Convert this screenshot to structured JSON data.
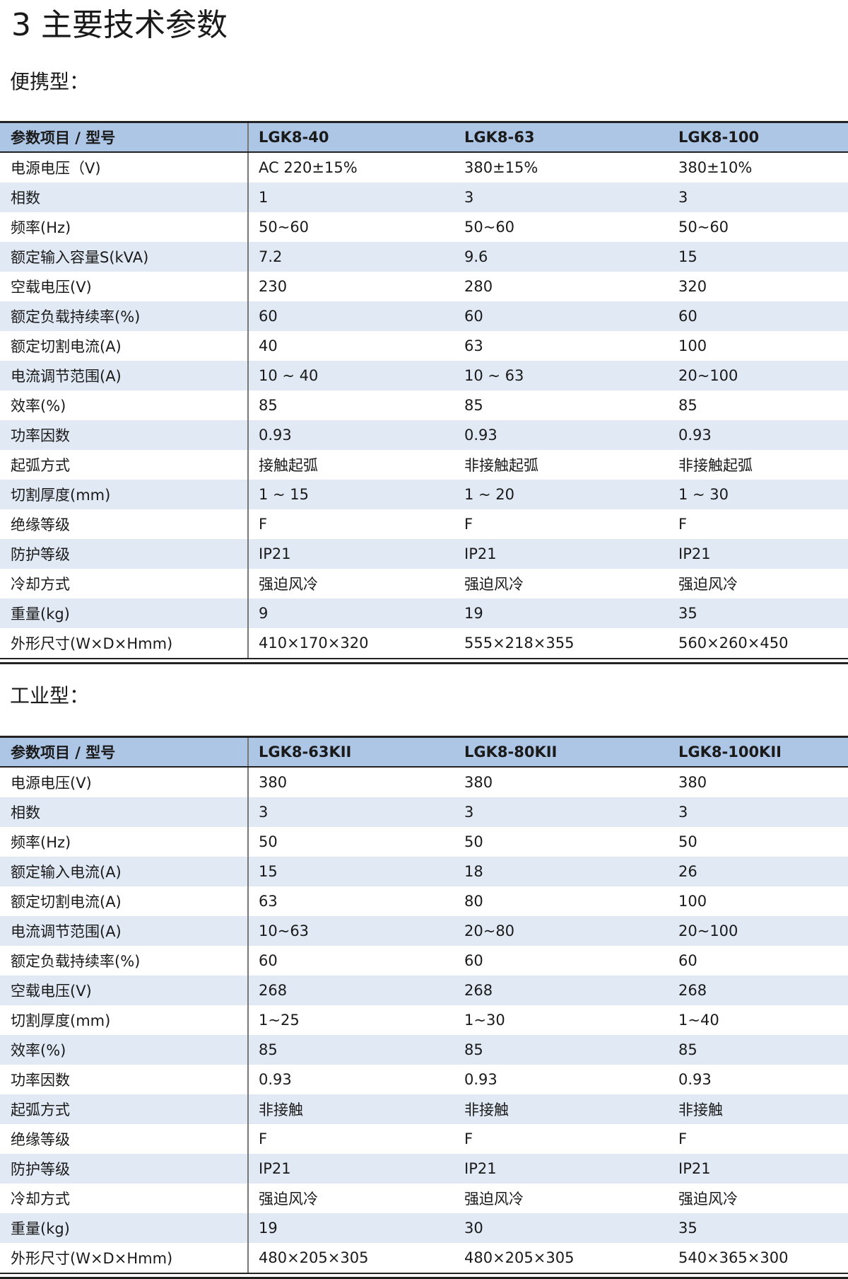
{
  "title": "3 主要技术参数",
  "sections": [
    {
      "heading": "便携型：",
      "header": [
        "参数项目 / 型号",
        "LGK8-40",
        "LGK8-63",
        "LGK8-100"
      ],
      "rows": [
        [
          "电源电压（V)",
          "AC 220±15%",
          "380±15%",
          "380±10%"
        ],
        [
          "相数",
          "1",
          "3",
          "3"
        ],
        [
          "频率(Hz)",
          "50~60",
          "50~60",
          "50~60"
        ],
        [
          "额定输入容量S(kVA)",
          "7.2",
          "9.6",
          "15"
        ],
        [
          "空载电压(V)",
          "230",
          "280",
          "320"
        ],
        [
          "额定负载持续率(%)",
          "60",
          "60",
          "60"
        ],
        [
          "额定切割电流(A)",
          "40",
          "63",
          "100"
        ],
        [
          "电流调节范围(A)",
          "10 ~ 40",
          "10 ~ 63",
          "20~100"
        ],
        [
          "效率(%)",
          "85",
          "85",
          "85"
        ],
        [
          "功率因数",
          "0.93",
          "0.93",
          "0.93"
        ],
        [
          "起弧方式",
          "接触起弧",
          "非接触起弧",
          "非接触起弧"
        ],
        [
          "切割厚度(mm)",
          "1 ~ 15",
          "1 ~ 20",
          "1 ~ 30"
        ],
        [
          "绝缘等级",
          "F",
          "F",
          "F"
        ],
        [
          "防护等级",
          "IP21",
          "IP21",
          "IP21"
        ],
        [
          "冷却方式",
          "强迫风冷",
          "强迫风冷",
          "强迫风冷"
        ],
        [
          "重量(kg)",
          "9",
          "19",
          "35"
        ],
        [
          "外形尺寸(W×D×Hmm)",
          "410×170×320",
          "555×218×355",
          "560×260×450"
        ]
      ]
    },
    {
      "heading": "工业型：",
      "header": [
        "参数项目 / 型号",
        "LGK8-63KII",
        "LGK8-80KII",
        "LGK8-100KII"
      ],
      "rows": [
        [
          "电源电压(V)",
          "380",
          "380",
          "380"
        ],
        [
          "相数",
          "3",
          "3",
          "3"
        ],
        [
          "频率(Hz)",
          "50",
          "50",
          "50"
        ],
        [
          "额定输入电流(A)",
          "15",
          "18",
          "26"
        ],
        [
          "额定切割电流(A)",
          "63",
          "80",
          "100"
        ],
        [
          "电流调节范围(A)",
          "10~63",
          "20~80",
          "20~100"
        ],
        [
          "额定负载持续率(%)",
          "60",
          "60",
          "60"
        ],
        [
          "空载电压(V)",
          "268",
          "268",
          "268"
        ],
        [
          "切割厚度(mm)",
          "1~25",
          "1~30",
          "1~40"
        ],
        [
          "效率(%)",
          "85",
          "85",
          "85"
        ],
        [
          "功率因数",
          "0.93",
          "0.93",
          "0.93"
        ],
        [
          "起弧方式",
          "非接触",
          "非接触",
          "非接触"
        ],
        [
          "绝缘等级",
          "F",
          "F",
          "F"
        ],
        [
          "防护等级",
          "IP21",
          "IP21",
          "IP21"
        ],
        [
          "冷却方式",
          "强迫风冷",
          "强迫风冷",
          "强迫风冷"
        ],
        [
          "重量(kg)",
          "19",
          "30",
          "35"
        ],
        [
          "外形尺寸(W×D×Hmm)",
          "480×205×305",
          "480×205×305",
          "540×365×300"
        ]
      ]
    }
  ],
  "colors": {
    "header_bg": "#adc6e6",
    "alt_row_bg": "#e1e9f4"
  }
}
